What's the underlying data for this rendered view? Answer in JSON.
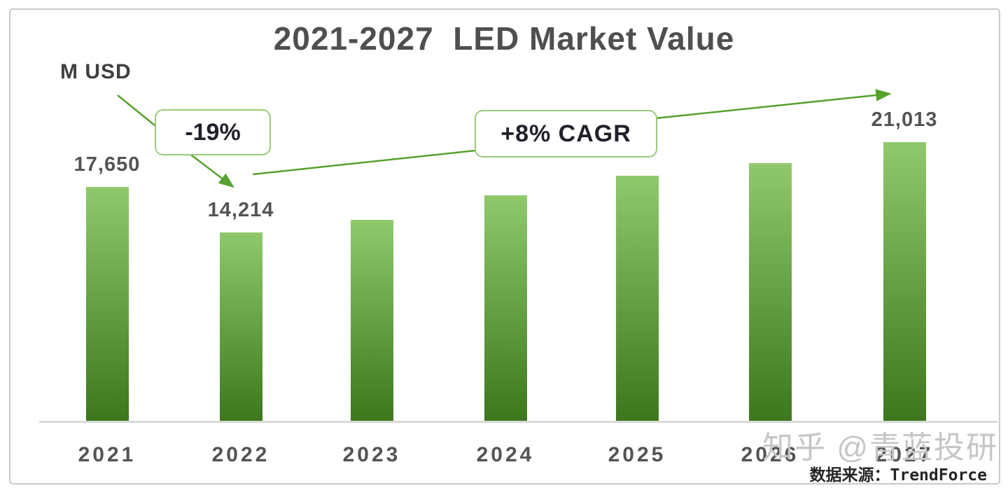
{
  "title": "2021-2027  LED Market Value",
  "unit_label": "M USD",
  "chart_data": {
    "type": "bar",
    "title": "2021-2027 LED Market Value",
    "ylabel": "M USD",
    "xlabel": "",
    "categories": [
      "2021",
      "2022",
      "2023",
      "2024",
      "2025",
      "2026",
      "2027"
    ],
    "values": [
      17650,
      14214,
      15200,
      17000,
      18500,
      19450,
      21013
    ],
    "value_labels": [
      "17,650",
      "14,214",
      "",
      "",
      "",
      "",
      "21,013"
    ],
    "estimated_indices": [
      2,
      3,
      4,
      5
    ],
    "ylim": [
      0,
      21500
    ],
    "grid": false,
    "legend": "none",
    "annotations": [
      {
        "label": "-19%",
        "note": "drop from 2021 to 2022"
      },
      {
        "label": "+8% CAGR",
        "note": "growth trend 2022 to 2027"
      }
    ]
  },
  "annotations": {
    "drop_label": "-19%",
    "cagr_label": "+8% CAGR"
  },
  "watermark": "知乎 @青蓝投研",
  "source": "数据来源：TrendForce",
  "colors": {
    "bar_top": "#8fc96c",
    "bar_bottom": "#3d771d",
    "arrow": "#56a22f",
    "callout_border": "#9cca7a",
    "title": "#4f4f4f",
    "label": "#545454",
    "axis": "#d9d9d9",
    "watermark": "#c6c6c6"
  }
}
